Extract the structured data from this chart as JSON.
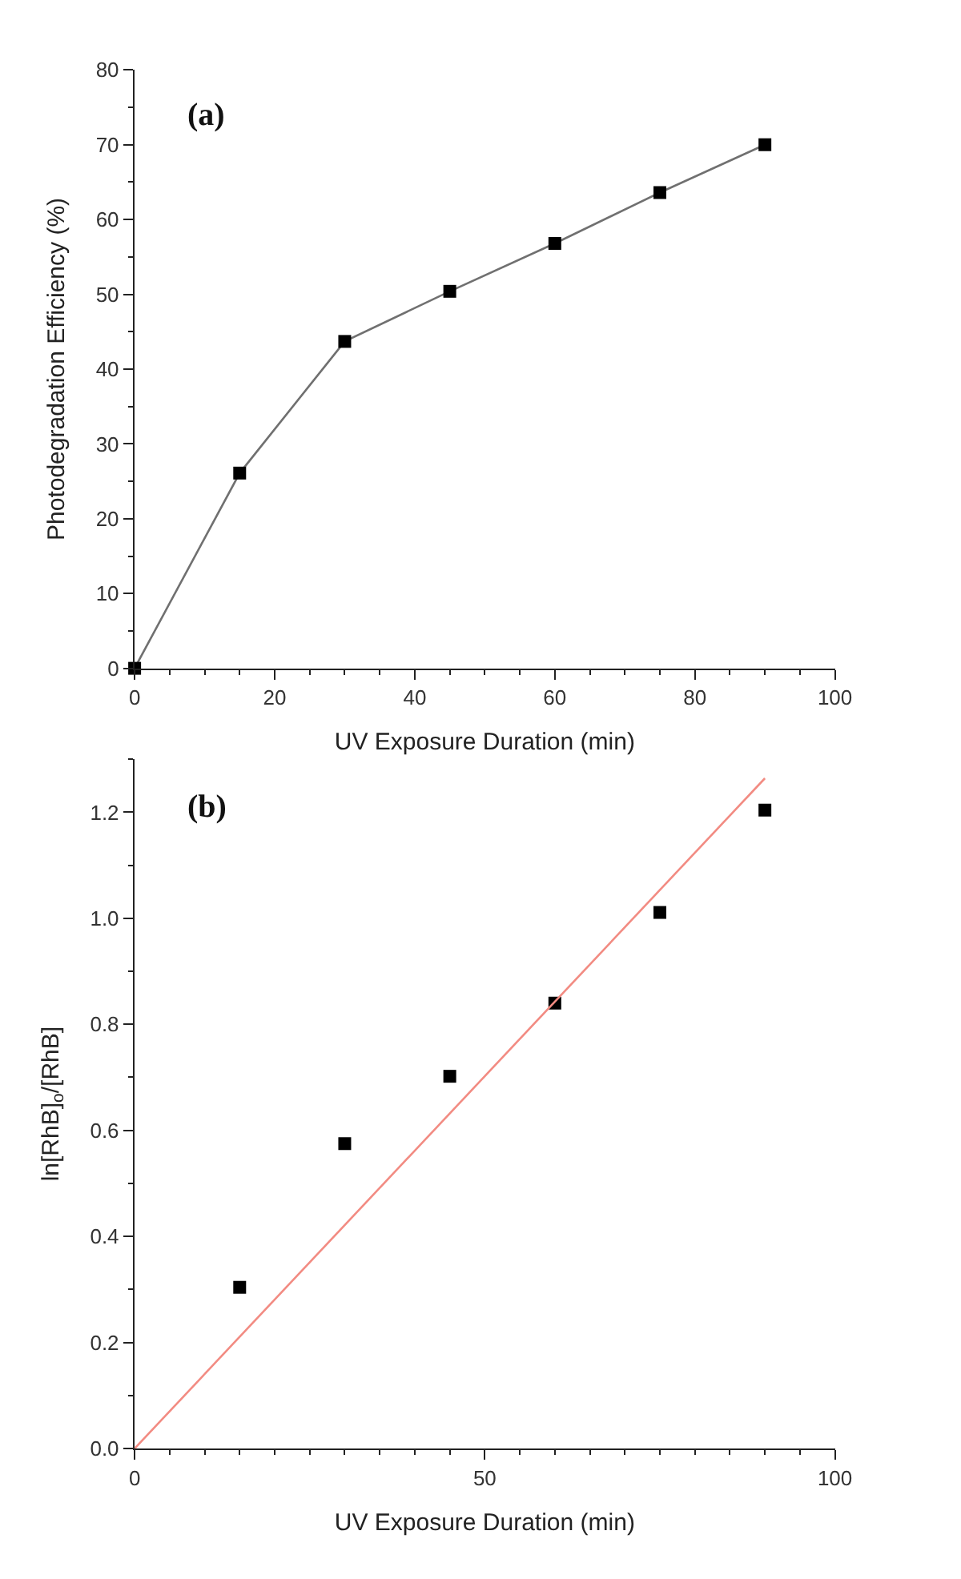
{
  "chart_data": [
    {
      "type": "line",
      "xlabel": "UV Exposure Duration (min)",
      "ylabel": "Photodegradation Efficiency (%)",
      "annotations": [
        "(a)"
      ],
      "x": [
        0,
        15,
        30,
        45,
        60,
        75,
        90
      ],
      "series": [
        {
          "color": "#000000",
          "values": [
            0,
            26.1,
            43.7,
            50.4,
            56.8,
            63.6,
            70.0
          ]
        }
      ],
      "xlim": [
        0,
        100
      ],
      "xticks": [
        0,
        20,
        40,
        60,
        80,
        100
      ],
      "ylim": [
        0,
        80
      ],
      "yticks": [
        0,
        10,
        20,
        30,
        40,
        50,
        60,
        70,
        80
      ],
      "marker": "square",
      "line_style": "solid"
    },
    {
      "type": "scatter",
      "xlabel": "UV Exposure Duration (min)",
      "ylabel": "ln[RhB]$_{o}$/[RhB]",
      "annotations": [
        "(b)"
      ],
      "x": [
        15,
        30,
        45,
        60,
        75,
        90
      ],
      "series": [
        {
          "color": "#000000",
          "marker": "square",
          "values": [
            0.304,
            0.575,
            0.702,
            0.84,
            1.011,
            1.204
          ]
        },
        {
          "type": "line",
          "color": "#f28b82",
          "marker": "none",
          "line_style": "solid",
          "x": [
            0,
            90
          ],
          "values": [
            0,
            1.264
          ]
        }
      ],
      "xlim": [
        0,
        100
      ],
      "xticks": [
        0,
        50,
        100
      ],
      "ylim": [
        0,
        1.3
      ],
      "yticks": [
        {
          "value": 0,
          "label": "0.0"
        },
        0.2,
        0.4,
        0.6,
        0.8,
        {
          "value": 1,
          "label": "1.0"
        },
        1.2
      ],
      "tick_labels": true
    }
  ]
}
